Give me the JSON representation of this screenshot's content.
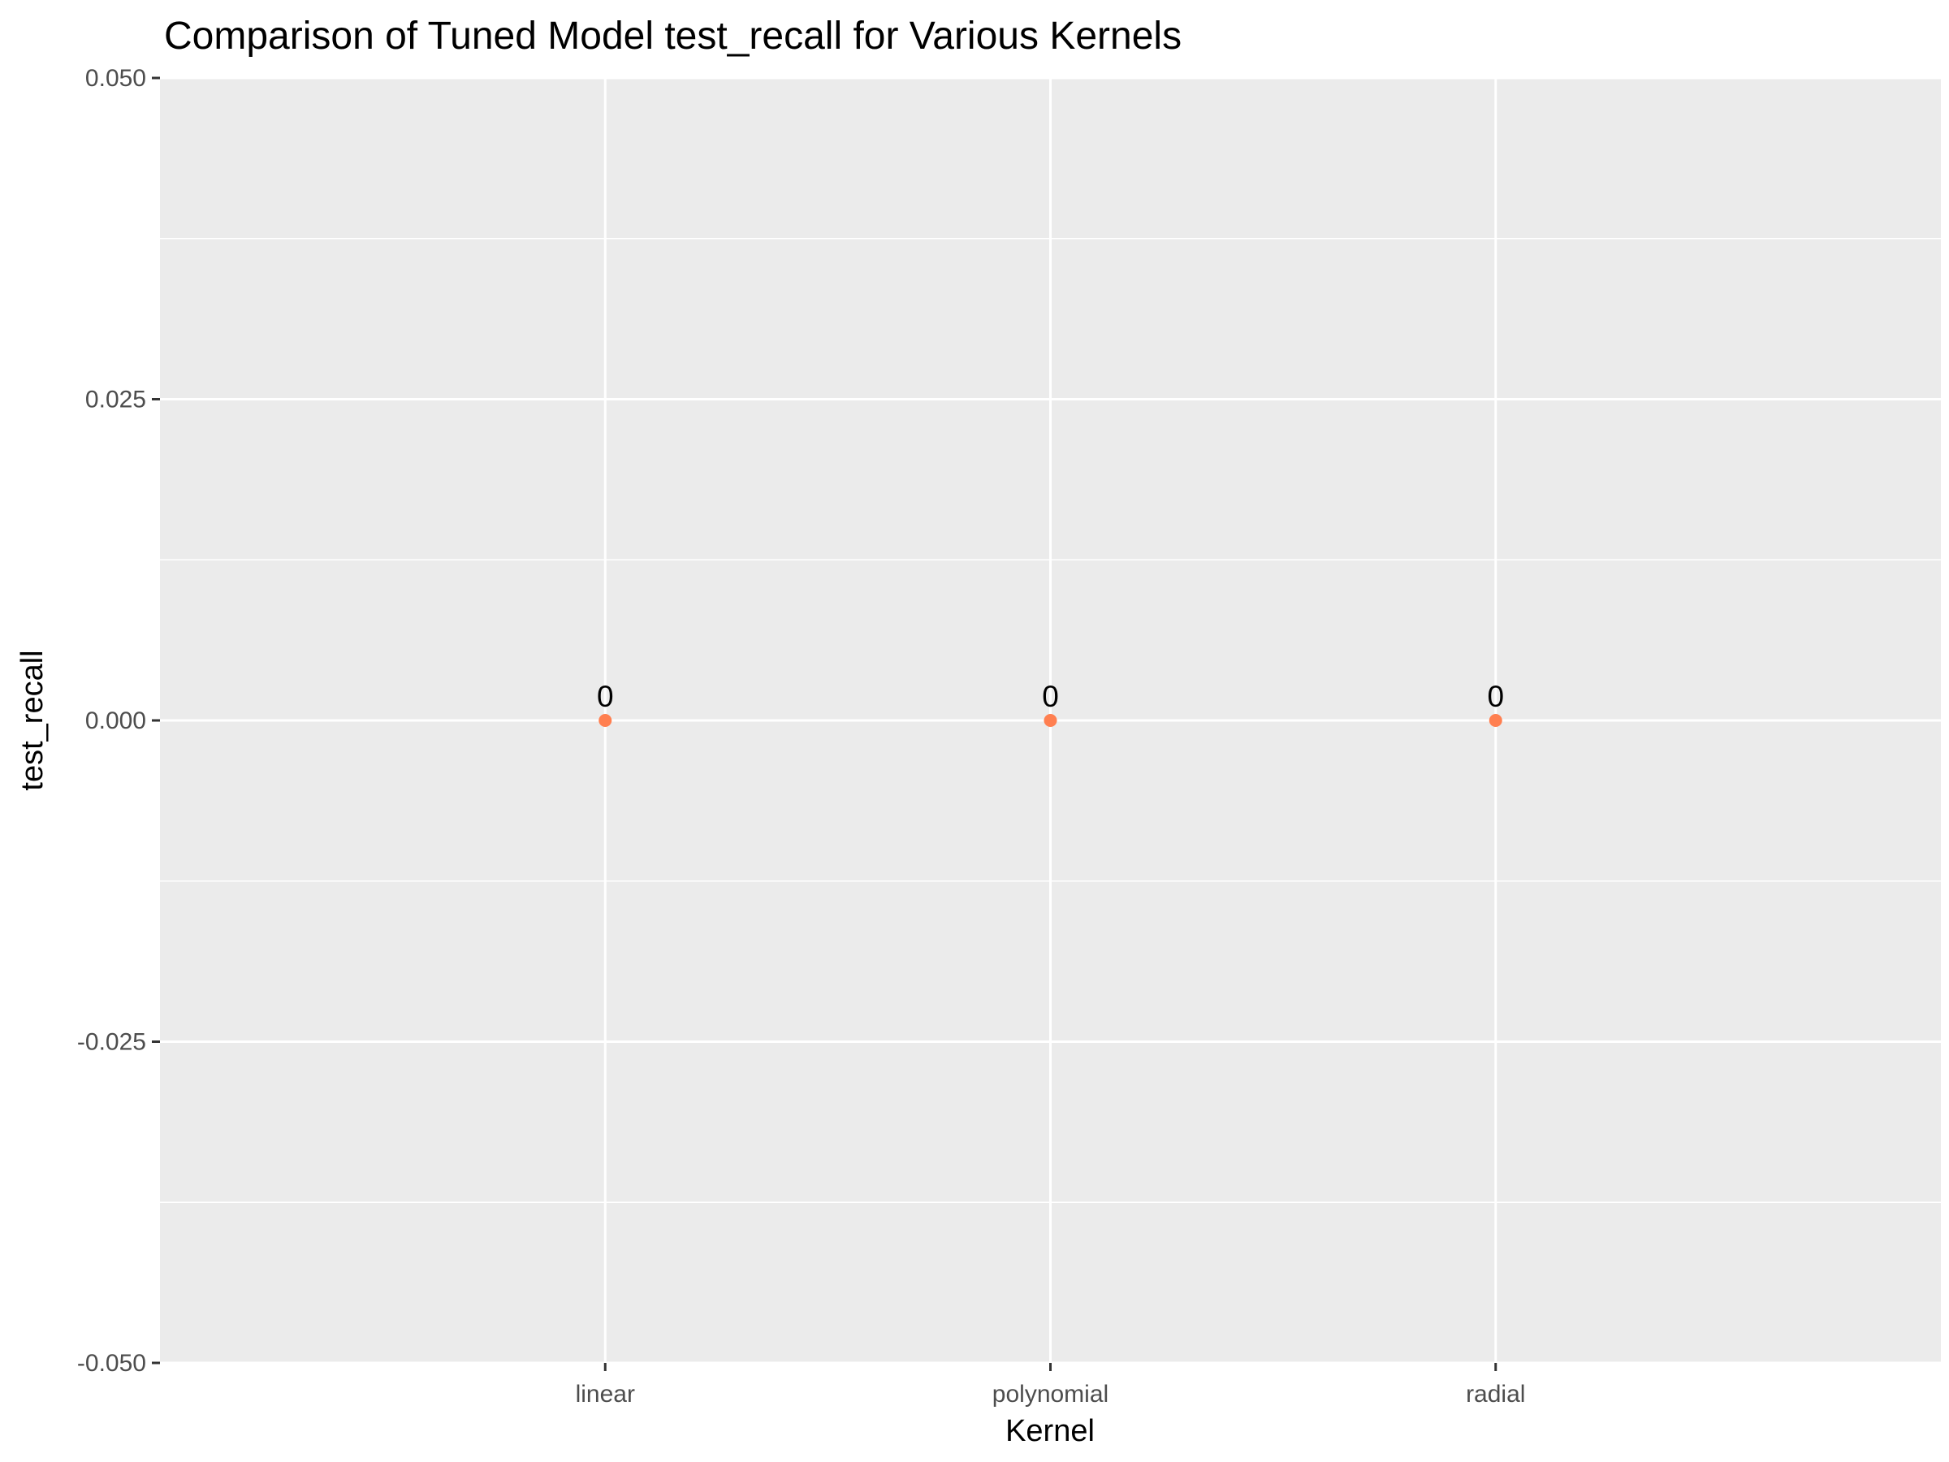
{
  "chart_data": {
    "type": "scatter",
    "title": "Comparison of Tuned Model test_recall for Various Kernels",
    "xlabel": "Kernel",
    "ylabel": "test_recall",
    "categories": [
      "linear",
      "polynomial",
      "radial"
    ],
    "values": [
      0,
      0,
      0
    ],
    "data_labels": [
      "0",
      "0",
      "0"
    ],
    "ylim": [
      -0.05,
      0.05
    ],
    "y_ticks": [
      -0.05,
      -0.025,
      0,
      0.025,
      0.05
    ],
    "y_tick_labels": [
      "-0.050",
      "-0.025",
      "0.000",
      "0.025",
      "0.050"
    ],
    "grid": true,
    "legend": "none"
  },
  "colors": {
    "panel_background": "#ebebeb",
    "grid_major": "#ffffff",
    "grid_minor": "#ffffff",
    "point": "#ff7f50",
    "tick_mark": "#333333"
  }
}
